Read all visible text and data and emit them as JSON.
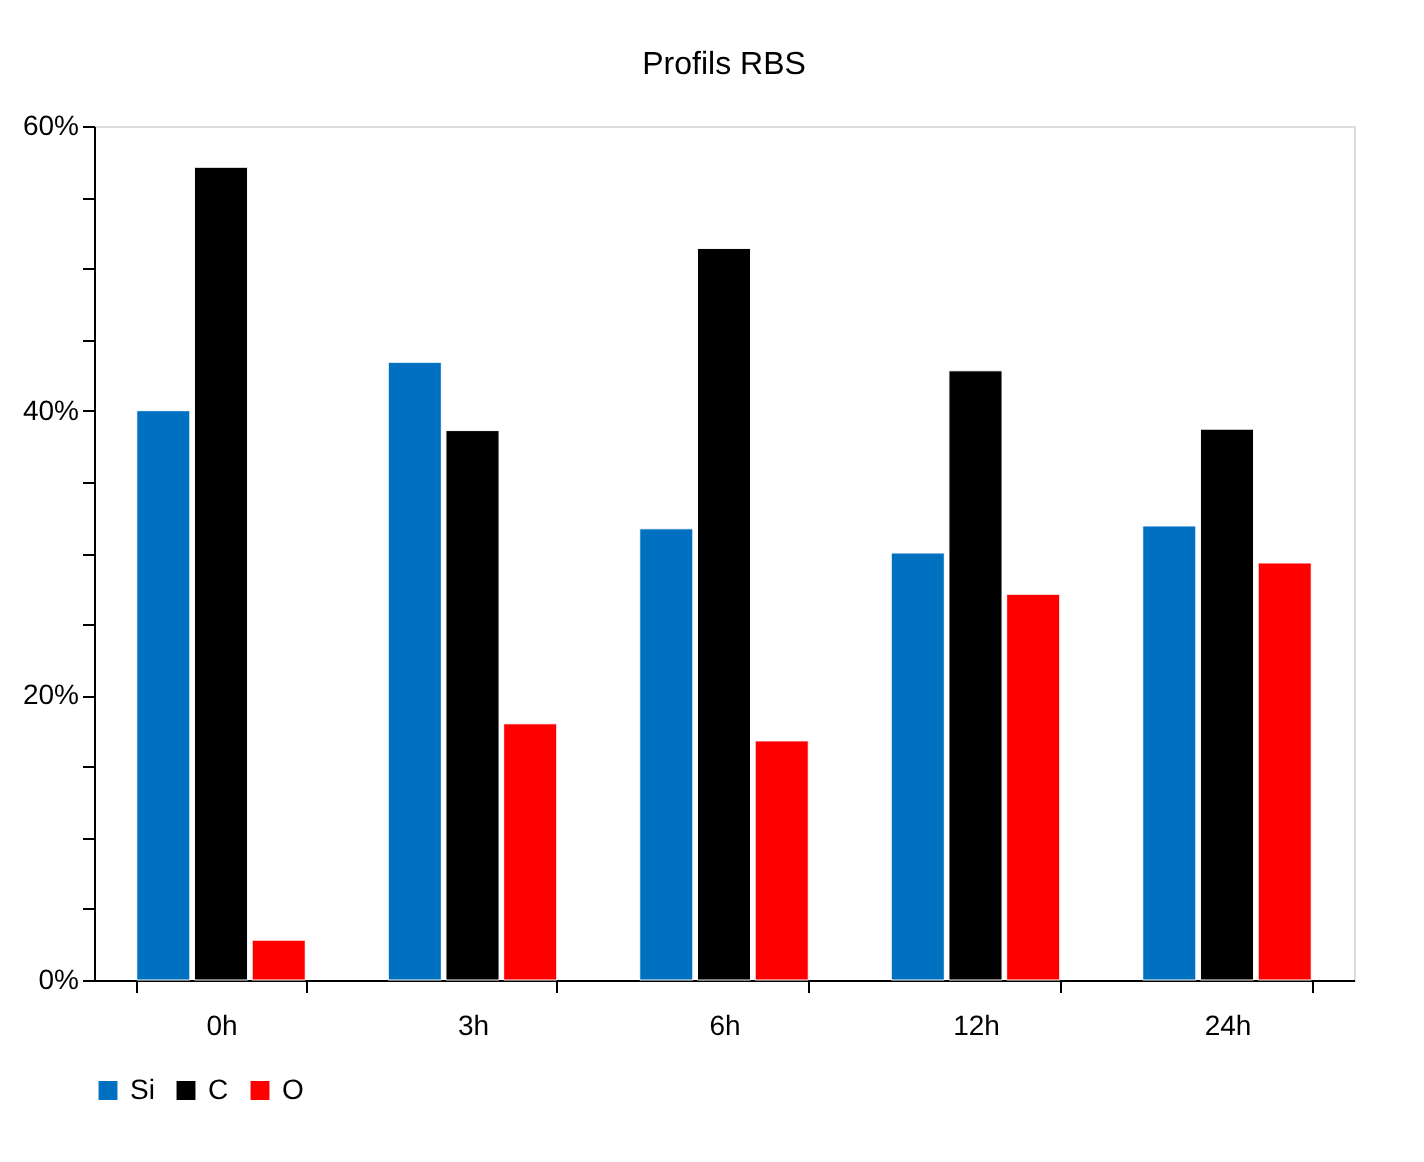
{
  "chart_data": {
    "type": "bar",
    "title": "Profils RBS",
    "categories": [
      "0h",
      "3h",
      "6h",
      "12h",
      "24h"
    ],
    "series": [
      {
        "name": "Si",
        "color": "#0070c0",
        "values": [
          40.0,
          43.4,
          31.7,
          30.0,
          31.9
        ]
      },
      {
        "name": "C",
        "color": "#000000",
        "values": [
          57.1,
          38.6,
          51.4,
          42.8,
          38.7
        ]
      },
      {
        "name": "O",
        "color": "#ff0000",
        "values": [
          2.8,
          18.0,
          16.8,
          27.1,
          29.3
        ]
      }
    ],
    "ylim": [
      0,
      60
    ],
    "yticks": [
      {
        "value": 0,
        "label": "0%"
      },
      {
        "value": 5,
        "label": null
      },
      {
        "value": 10,
        "label": null
      },
      {
        "value": 15,
        "label": null
      },
      {
        "value": 20,
        "label": "20%"
      },
      {
        "value": 25,
        "label": null
      },
      {
        "value": 30,
        "label": null
      },
      {
        "value": 35,
        "label": null
      },
      {
        "value": 40,
        "label": "40%"
      },
      {
        "value": 45,
        "label": null
      },
      {
        "value": 50,
        "label": null
      },
      {
        "value": 55,
        "label": null
      },
      {
        "value": 60,
        "label": "60%"
      }
    ],
    "grid": false,
    "legend": "bottom"
  }
}
